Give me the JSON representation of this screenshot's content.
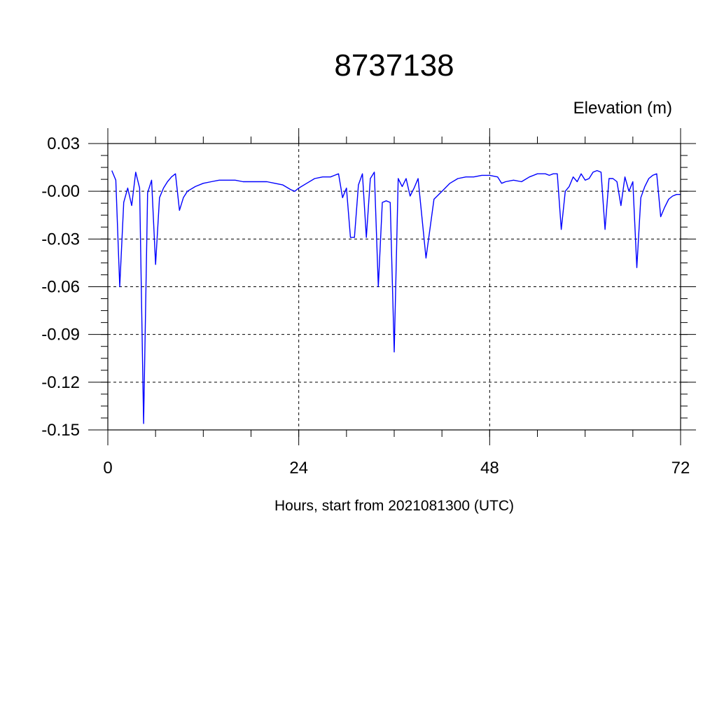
{
  "chart_data": {
    "type": "line",
    "title": "8737138",
    "units_label": "Elevation (m)",
    "xlabel": "Hours, start from 2021081300 (UTC)",
    "ylabel": "",
    "xlim": [
      0,
      72
    ],
    "ylim": [
      -0.15,
      0.03
    ],
    "x_ticks": [
      0,
      24,
      48,
      72
    ],
    "x_tick_labels": [
      "0",
      "24",
      "48",
      "72"
    ],
    "y_ticks": [
      0.03,
      0.0,
      -0.03,
      -0.06,
      -0.09,
      -0.12,
      -0.15
    ],
    "y_tick_labels": [
      "0.03",
      "-0.00",
      "-0.03",
      "-0.06",
      "-0.09",
      "-0.12",
      "-0.15"
    ],
    "grid": true,
    "line_color": "#0000ff",
    "series": [
      {
        "x": [
          0.5,
          1.0,
          1.5,
          2.0,
          2.5,
          3.0,
          3.5,
          4.0,
          4.5,
          5.0,
          5.5,
          6.0,
          6.5,
          7.0,
          7.5,
          8.0,
          8.5,
          9.0,
          9.5,
          10,
          11,
          12,
          13,
          14,
          15,
          16,
          17,
          18,
          19,
          20,
          21,
          22,
          23,
          23.5,
          24,
          25,
          26,
          27,
          28,
          28.5,
          29,
          29.5,
          30,
          30.5,
          31,
          31.5,
          32,
          32.5,
          33,
          33.5,
          34,
          34.5,
          35,
          35.5,
          36,
          36.5,
          37,
          37.5,
          38,
          38.5,
          39,
          40,
          41,
          42,
          43,
          44,
          45,
          46,
          47,
          48,
          49,
          49.5,
          50,
          51,
          52,
          53,
          54,
          55,
          55.5,
          56,
          56.5,
          57,
          57.5,
          58,
          58.5,
          59,
          59.5,
          60,
          60.5,
          61,
          61.5,
          62,
          62.5,
          63,
          63.5,
          64,
          64.5,
          65,
          65.5,
          66,
          66.5,
          67,
          67.5,
          68,
          68.5,
          69,
          69.5,
          70,
          70.5,
          71,
          71.5,
          72
        ],
        "values": [
          0.013,
          0.007,
          -0.06,
          -0.007,
          0.002,
          -0.009,
          0.012,
          0.002,
          -0.146,
          -0.001,
          0.007,
          -0.046,
          -0.004,
          0.002,
          0.006,
          0.009,
          0.011,
          -0.012,
          -0.004,
          0.0,
          0.003,
          0.005,
          0.006,
          0.007,
          0.007,
          0.007,
          0.006,
          0.006,
          0.006,
          0.006,
          0.005,
          0.004,
          0.001,
          0.0,
          0.002,
          0.005,
          0.008,
          0.009,
          0.009,
          0.01,
          0.011,
          -0.004,
          0.002,
          -0.029,
          -0.029,
          0.004,
          0.011,
          -0.029,
          0.008,
          0.012,
          -0.06,
          -0.007,
          -0.006,
          -0.007,
          -0.101,
          0.008,
          0.003,
          0.008,
          -0.003,
          0.002,
          0.008,
          -0.042,
          -0.005,
          0.0,
          0.005,
          0.008,
          0.009,
          0.009,
          0.01,
          0.01,
          0.009,
          0.005,
          0.006,
          0.007,
          0.006,
          0.009,
          0.011,
          0.011,
          0.01,
          0.011,
          0.011,
          -0.024,
          0.0,
          0.003,
          0.009,
          0.006,
          0.011,
          0.007,
          0.008,
          0.012,
          0.013,
          0.012,
          -0.024,
          0.008,
          0.008,
          0.006,
          -0.009,
          0.009,
          0.0,
          0.006,
          -0.048,
          -0.004,
          0.003,
          0.008,
          0.01,
          0.011,
          -0.016,
          -0.01,
          -0.005,
          -0.003,
          -0.002,
          -0.002
        ]
      }
    ]
  }
}
